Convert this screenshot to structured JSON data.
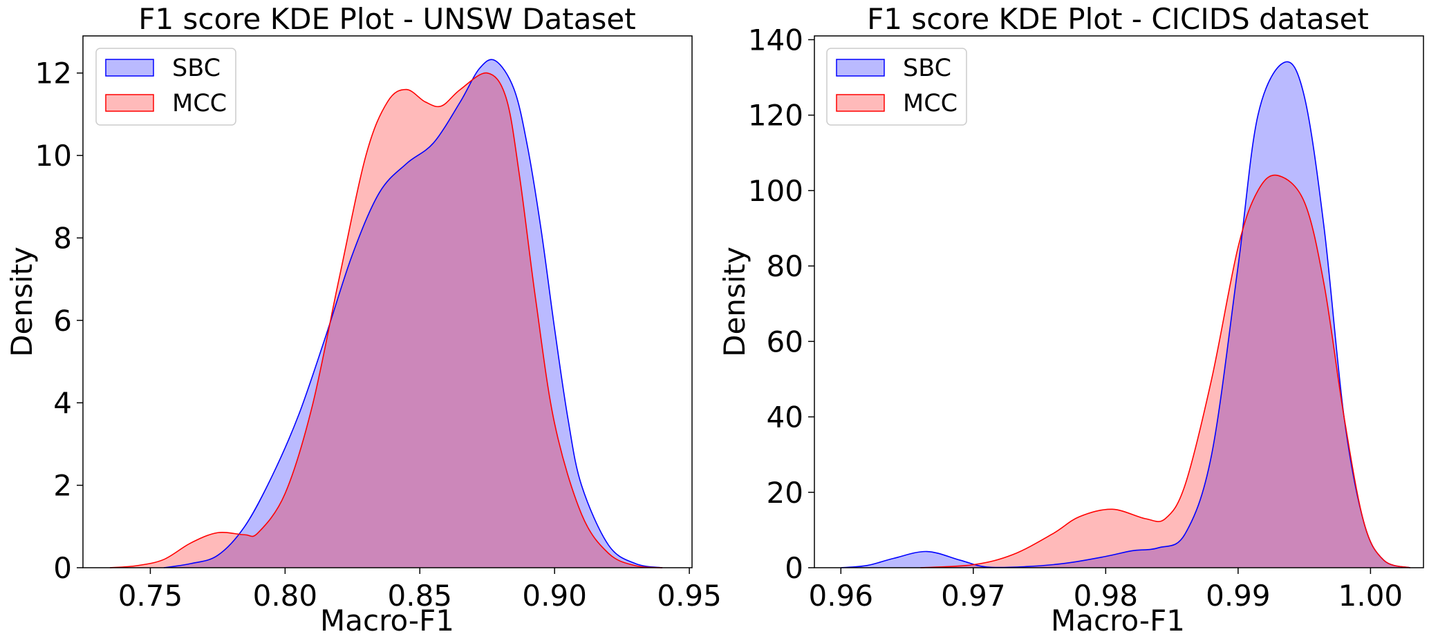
{
  "chart_data": [
    {
      "type": "area",
      "title": "F1 score KDE Plot - UNSW Dataset",
      "xlabel": "Macro-F1",
      "ylabel": "Density",
      "xlim": [
        0.725,
        0.951
      ],
      "ylim": [
        0,
        12.9
      ],
      "xticks": [
        "0.75",
        "0.80",
        "0.85",
        "0.90",
        "0.95"
      ],
      "yticks": [
        "0",
        "2",
        "4",
        "6",
        "8",
        "10",
        "12"
      ],
      "legend_position": "top-left",
      "grid": false,
      "series": [
        {
          "name": "SBC",
          "color": "#0000ff",
          "x": [
            0.755,
            0.765,
            0.775,
            0.785,
            0.795,
            0.805,
            0.815,
            0.825,
            0.835,
            0.845,
            0.855,
            0.865,
            0.872,
            0.878,
            0.885,
            0.89,
            0.895,
            0.9,
            0.905,
            0.91,
            0.92,
            0.93,
            0.94
          ],
          "y": [
            0.0,
            0.1,
            0.3,
            1.0,
            2.2,
            3.7,
            5.6,
            7.6,
            9.1,
            9.8,
            10.3,
            11.3,
            12.1,
            12.3,
            11.6,
            10.2,
            8.2,
            5.8,
            3.6,
            2.0,
            0.55,
            0.1,
            0.0
          ]
        },
        {
          "name": "MCC",
          "color": "#ff0000",
          "x": [
            0.735,
            0.745,
            0.755,
            0.765,
            0.775,
            0.785,
            0.79,
            0.8,
            0.81,
            0.82,
            0.83,
            0.838,
            0.845,
            0.852,
            0.858,
            0.865,
            0.875,
            0.882,
            0.887,
            0.893,
            0.9,
            0.91,
            0.92,
            0.93,
            0.94
          ],
          "y": [
            0.0,
            0.05,
            0.2,
            0.6,
            0.85,
            0.8,
            0.85,
            1.8,
            3.9,
            7.0,
            10.0,
            11.3,
            11.6,
            11.3,
            11.2,
            11.6,
            12.0,
            11.4,
            9.5,
            6.5,
            3.5,
            1.3,
            0.35,
            0.05,
            0.0
          ]
        }
      ]
    },
    {
      "type": "area",
      "title": "F1 score KDE Plot - CICIDS dataset",
      "xlabel": "Macro-F1",
      "ylabel": "Density",
      "xlim": [
        0.958,
        1.004
      ],
      "ylim": [
        0,
        141
      ],
      "xticks": [
        "0.96",
        "0.97",
        "0.98",
        "0.99",
        "1.00"
      ],
      "yticks": [
        "0",
        "20",
        "40",
        "60",
        "80",
        "100",
        "120",
        "140"
      ],
      "legend_position": "top-left",
      "grid": false,
      "series": [
        {
          "name": "SBC",
          "color": "#0000ff",
          "x": [
            0.96,
            0.962,
            0.964,
            0.9665,
            0.969,
            0.971,
            0.974,
            0.977,
            0.98,
            0.982,
            0.984,
            0.986,
            0.988,
            0.99,
            0.9915,
            0.9935,
            0.995,
            0.9965,
            0.998,
            0.9995,
            1.001,
            1.003
          ],
          "y": [
            0.0,
            0.6,
            2.5,
            4.3,
            2.0,
            0.2,
            0.3,
            1.2,
            3.0,
            4.5,
            5.3,
            9.0,
            30.0,
            80.0,
            120.0,
            134.0,
            125.0,
            90.0,
            40.0,
            12.0,
            2.0,
            0.0
          ]
        },
        {
          "name": "MCC",
          "color": "#ff0000",
          "x": [
            0.966,
            0.97,
            0.973,
            0.976,
            0.978,
            0.9805,
            0.983,
            0.9845,
            0.986,
            0.988,
            0.99,
            0.9915,
            0.993,
            0.995,
            0.9965,
            0.998,
            0.9995,
            1.001,
            1.003
          ],
          "y": [
            0.0,
            0.8,
            3.5,
            9.0,
            13.5,
            15.5,
            13.0,
            13.0,
            22.0,
            50.0,
            85.0,
            100.0,
            104.0,
            97.0,
            75.0,
            40.0,
            12.0,
            2.0,
            0.0
          ]
        }
      ]
    }
  ]
}
